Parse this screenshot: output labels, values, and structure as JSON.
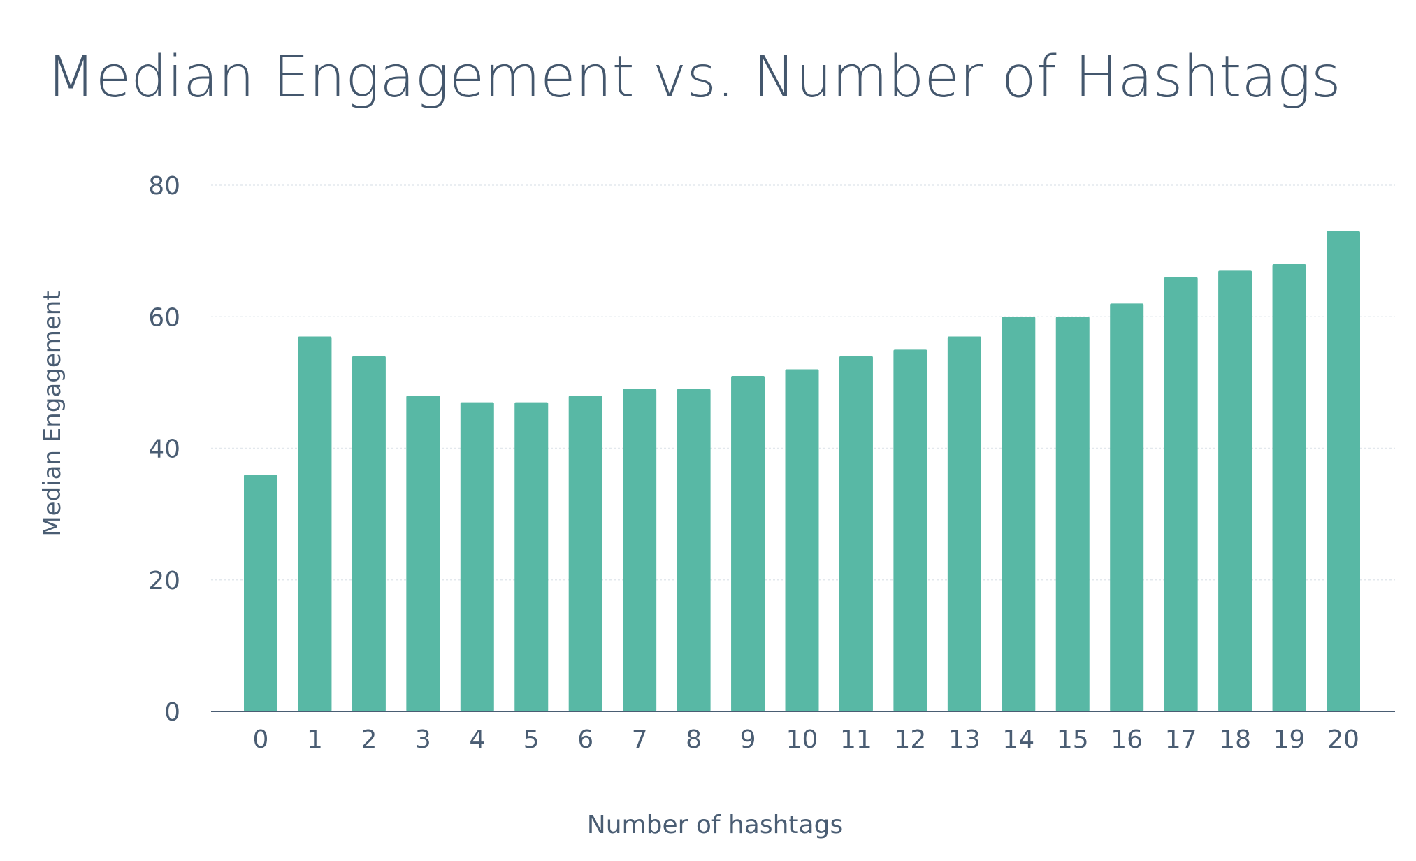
{
  "chart_data": {
    "type": "bar",
    "title": "Median Engagement vs. Number of Hashtags",
    "xlabel": "Number of hashtags",
    "ylabel": "Median Engagement",
    "categories": [
      "0",
      "1",
      "2",
      "3",
      "4",
      "5",
      "6",
      "7",
      "8",
      "9",
      "10",
      "11",
      "12",
      "13",
      "14",
      "15",
      "16",
      "17",
      "18",
      "19",
      "20"
    ],
    "values": [
      36,
      57,
      54,
      48,
      47,
      47,
      48,
      49,
      49,
      51,
      52,
      54,
      55,
      57,
      60,
      60,
      62,
      66,
      67,
      68,
      73
    ],
    "ylim": [
      0,
      80
    ],
    "yticks": [
      "0",
      "20",
      "40",
      "60",
      "80"
    ],
    "grid": true,
    "legend": "none"
  },
  "colors": {
    "bar": "#58b8a5",
    "title": "#44576d",
    "text": "#4a5d73",
    "grid": "#e3e8ed",
    "axis": "#4a5d73"
  }
}
